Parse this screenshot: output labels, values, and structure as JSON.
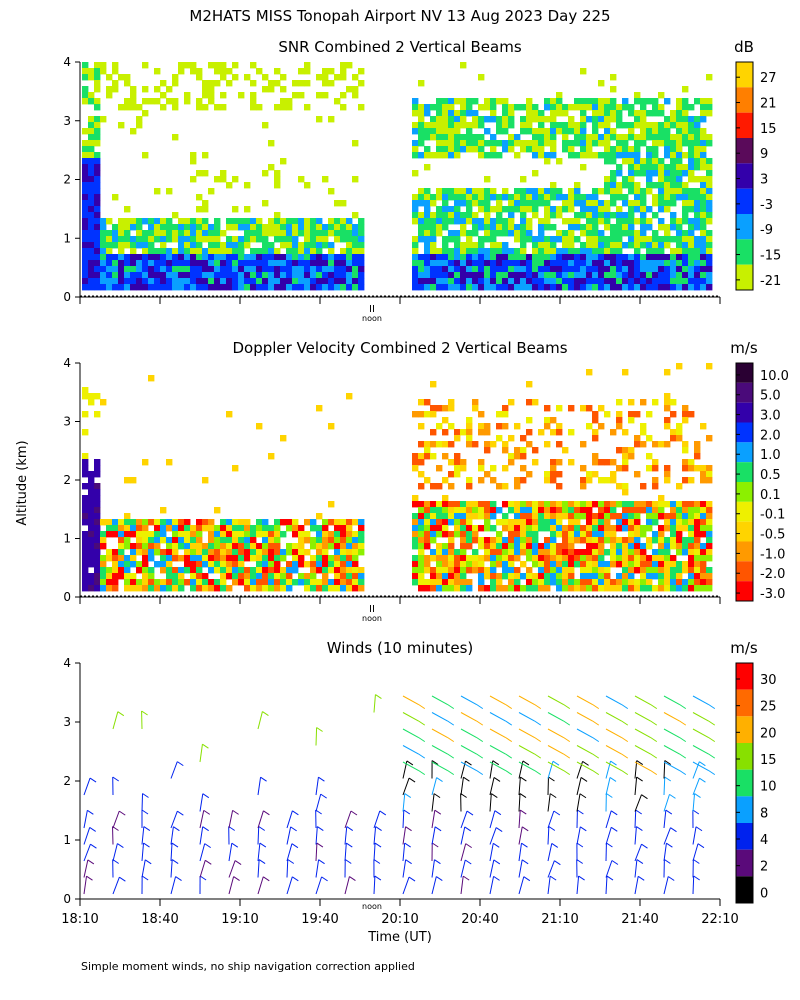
{
  "figure_title": "M2HATS MISS Tonopah Airport NV  13 Aug 2023 Day 225",
  "ylabel": "Altitude (km)",
  "xlabel": "Time (UT)",
  "footnote": "Simple moment winds, no ship navigation correction applied",
  "noon_label": "noon",
  "noon_mark": "II",
  "chart_data": [
    {
      "type": "heatmap",
      "title": "SNR Combined 2 Vertical Beams",
      "ylim": [
        0,
        4
      ],
      "yticks": [
        0,
        1,
        2,
        3,
        4
      ],
      "colorbar_unit": "dB",
      "colorbar_ticks": [
        "27",
        "21",
        "15",
        "9",
        "3",
        "-3",
        "-9",
        "-15",
        "-21"
      ],
      "colorbar_colors": [
        "#ffd400",
        "#ff7f00",
        "#ff1a00",
        "#5a0a5a",
        "#3300aa",
        "#0033ff",
        "#0aa0ff",
        "#19e065",
        "#c8f000"
      ],
      "data_gap": [
        "19:59",
        "20:14"
      ]
    },
    {
      "type": "heatmap",
      "title": "Doppler Velocity Combined 2 Vertical Beams",
      "ylim": [
        0,
        4
      ],
      "yticks": [
        0,
        1,
        2,
        3,
        4
      ],
      "colorbar_unit": "m/s",
      "colorbar_ticks": [
        "10.0",
        "5.0",
        "3.0",
        "2.0",
        "1.0",
        "0.5",
        "0.1",
        "-0.1",
        "-0.5",
        "-1.0",
        "-2.0",
        "-3.0"
      ],
      "colorbar_colors": [
        "#2a0033",
        "#4a0a7a",
        "#3300aa",
        "#0033ff",
        "#0aa0ff",
        "#19e065",
        "#8cf000",
        "#eef000",
        "#ffd400",
        "#ff9a00",
        "#ff5500",
        "#ff0000"
      ],
      "data_gap": [
        "19:59",
        "20:14"
      ]
    },
    {
      "type": "scatter",
      "title": "Winds (10 minutes)",
      "ylim": [
        0,
        4
      ],
      "yticks": [
        0,
        1,
        2,
        3,
        4
      ],
      "xticks": [
        "18:10",
        "18:40",
        "19:10",
        "19:40",
        "20:10",
        "20:40",
        "21:10",
        "21:40",
        "22:10"
      ],
      "colorbar_unit": "m/s",
      "colorbar_ticks": [
        "30",
        "25",
        "20",
        "15",
        "10",
        "8",
        "4",
        "2",
        "0"
      ],
      "colorbar_colors": [
        "#ff0000",
        "#ff6a00",
        "#ffb000",
        "#88e000",
        "#19e065",
        "#0aa0ff",
        "#0022ee",
        "#5a0a7a",
        "#000000"
      ]
    }
  ]
}
